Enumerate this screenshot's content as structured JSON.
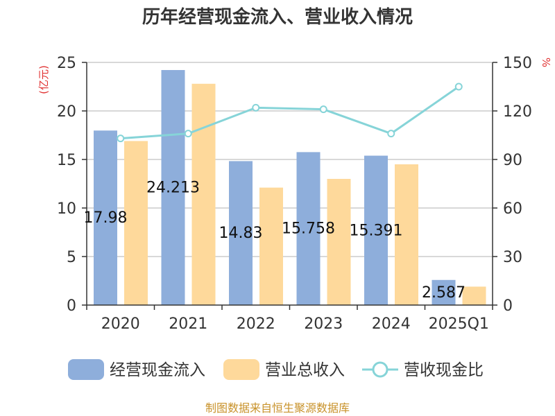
{
  "chart_data": {
    "type": "bar",
    "title": "历年经营现金流入、营业收入情况",
    "categories": [
      "2020",
      "2021",
      "2022",
      "2023",
      "2024",
      "2025Q1"
    ],
    "series": [
      {
        "name": "经营现金流入",
        "kind": "bar",
        "axis": "left",
        "color": "#8eaedb",
        "values": [
          17.98,
          24.213,
          14.83,
          15.758,
          15.391,
          2.587
        ],
        "labels": [
          "17.98",
          "24.213",
          "14.83",
          "15.758",
          "15.391",
          "2.587"
        ]
      },
      {
        "name": "营业总收入",
        "kind": "bar",
        "axis": "left",
        "color": "#fed99b",
        "values": [
          16.9,
          22.8,
          12.1,
          13.0,
          14.5,
          1.9
        ]
      },
      {
        "name": "营收现金比",
        "kind": "line",
        "axis": "right",
        "color": "#86d4d8",
        "values": [
          103,
          106,
          122,
          121,
          106,
          135
        ]
      }
    ],
    "y_left": {
      "unit": "(亿元)",
      "ticks": [
        0,
        5,
        10,
        15,
        20,
        25
      ],
      "ylim": [
        0,
        25
      ]
    },
    "y_right": {
      "unit": "%",
      "ticks": [
        0,
        30,
        60,
        90,
        120,
        150
      ],
      "ylim": [
        0,
        150
      ]
    },
    "grid": true,
    "legend_position": "bottom",
    "source": "制图数据来自恒生聚源数据库"
  }
}
